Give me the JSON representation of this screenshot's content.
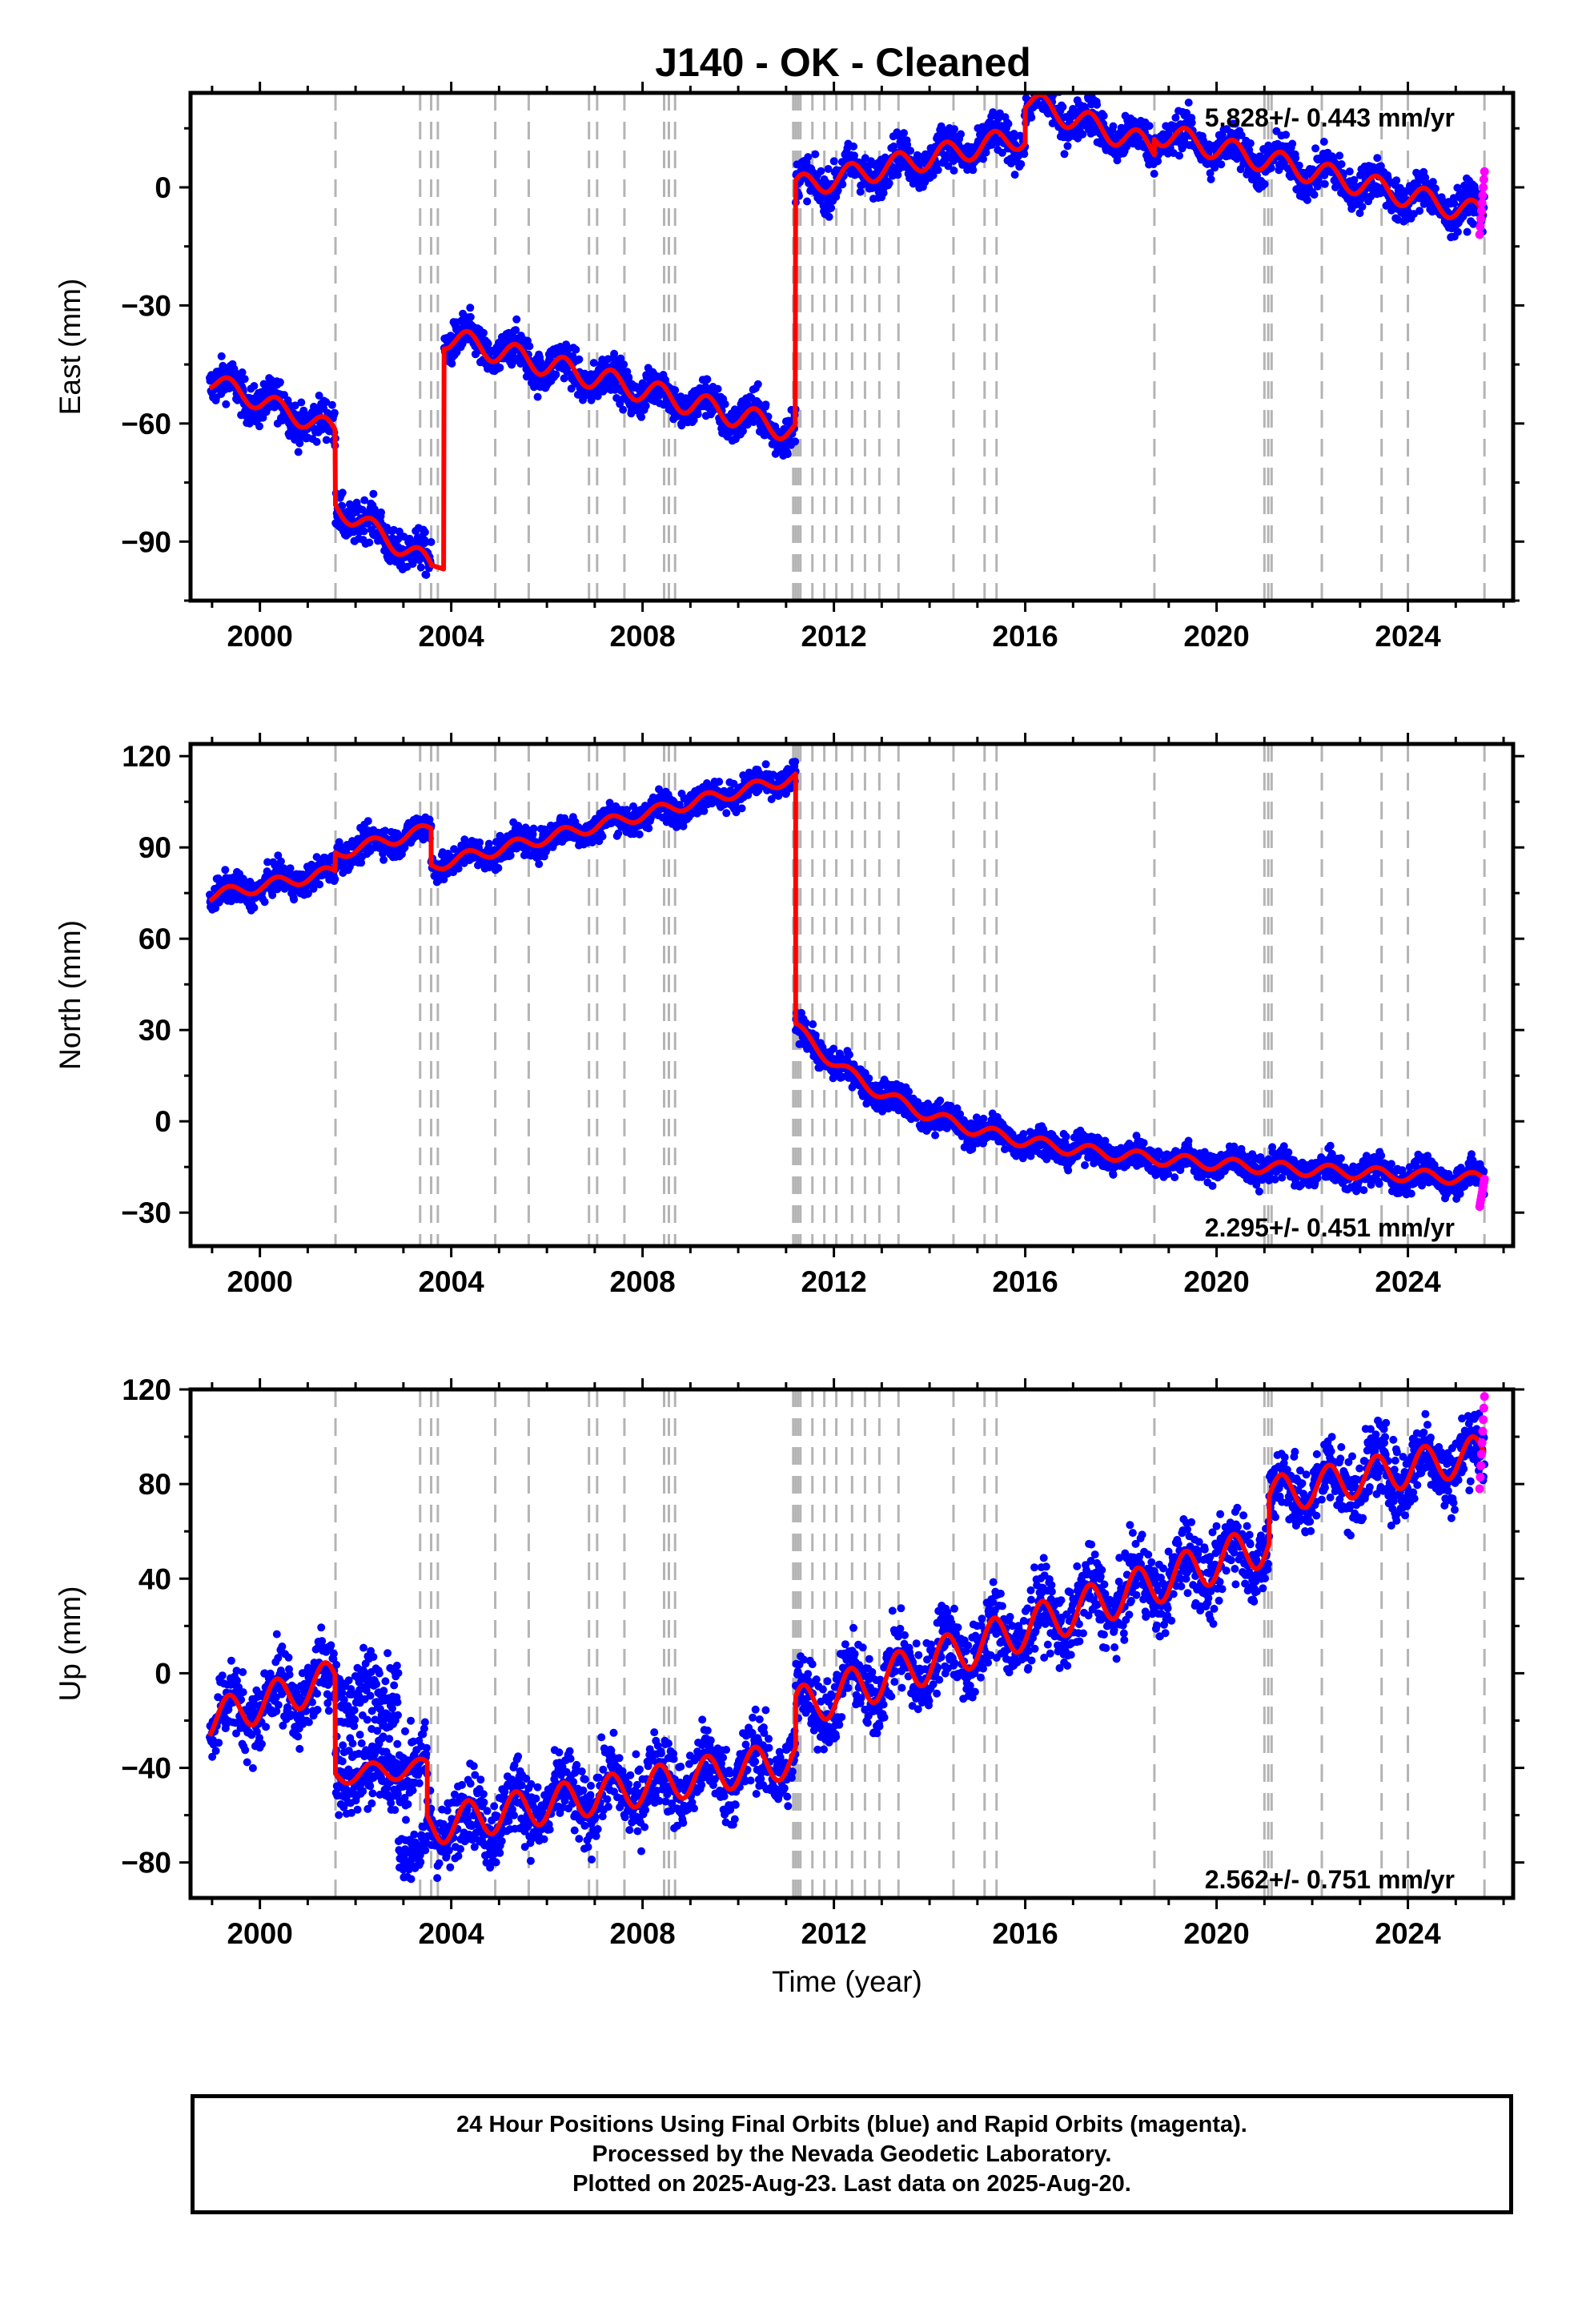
{
  "chart_data": {
    "title": "J140  - OK - Cleaned",
    "type": "scatter",
    "xlabel": "Time (year)",
    "xlim": [
      1998.55,
      2026.2
    ],
    "xticks": [
      2000,
      2004,
      2008,
      2012,
      2016,
      2020,
      2024
    ],
    "grid": false,
    "series_colors": {
      "final_orbits": "#0000ff",
      "rapid_orbits": "#ff00ff",
      "model": "#ff0000",
      "events": "#b4b4b4"
    },
    "event_lines": [
      2001.58,
      2003.35,
      2003.58,
      2003.72,
      2004.92,
      2005.62,
      2006.88,
      2007.05,
      2007.62,
      2008.45,
      2008.55,
      2008.68,
      2011.15,
      2011.2,
      2011.25,
      2011.3,
      2011.55,
      2011.8,
      2012.05,
      2012.38,
      2012.65,
      2012.95,
      2013.35,
      2014.5,
      2015.15,
      2015.4,
      2018.7,
      2021.0,
      2021.08,
      2021.15,
      2022.2,
      2023.45,
      2024.0,
      2025.6
    ],
    "panels": [
      {
        "name": "east",
        "ylabel": "East (mm)",
        "ylim": [
          -105,
          24
        ],
        "yticks": [
          0,
          -30,
          -60,
          -90
        ],
        "rate_text": "5.828+/- 0.443 mm/yr",
        "rate_position": "top-right",
        "model": [
          {
            "start": 1998.95,
            "end": 2001.58,
            "y0": -49,
            "y1": -62,
            "amp": 2.5
          },
          {
            "start": 2001.58,
            "end": 2003.58,
            "y0": -81,
            "y1": -96,
            "amp": 2.5
          },
          {
            "start": 2003.58,
            "end": 2003.85,
            "y0": -96,
            "y1": -97,
            "amp": 0
          },
          {
            "start": 2003.85,
            "end": 2011.2,
            "y0": -38,
            "y1": -62,
            "amp": 3
          },
          {
            "start": 2011.2,
            "end": 2016.0,
            "y0": 0,
            "y1": 13,
            "amp": 3
          },
          {
            "start": 2016.0,
            "end": 2018.7,
            "y0": 22,
            "y1": 10,
            "amp": 3
          },
          {
            "start": 2018.7,
            "end": 2025.6,
            "y0": 14,
            "y1": -7,
            "amp": 3
          }
        ],
        "noise": 2.6,
        "rapid": {
          "start": 2025.5,
          "end": 2025.6,
          "y0": -12,
          "y1": 4
        }
      },
      {
        "name": "north",
        "ylabel": "North (mm)",
        "ylim": [
          -41,
          124
        ],
        "yticks": [
          120,
          90,
          60,
          30,
          0,
          -30
        ],
        "rate_text": "2.295+/- 0.451 mm/yr",
        "rate_position": "bottom-right",
        "model": [
          {
            "start": 1998.95,
            "end": 2001.58,
            "y0": 74,
            "y1": 82,
            "amp": 2
          },
          {
            "start": 2001.58,
            "end": 2003.58,
            "y0": 88,
            "y1": 96,
            "amp": 2
          },
          {
            "start": 2003.58,
            "end": 2011.2,
            "y0": 84,
            "y1": 113,
            "amp": 2
          },
          {
            "start": 2011.2,
            "end": 2025.6,
            "y0": 31,
            "y1": -32,
            "amp": 2,
            "decay": {
              "A": 40,
              "tau": 2.5,
              "rate": 0.7
            }
          }
        ],
        "noise": 2.4,
        "rapid": {
          "start": 2025.5,
          "end": 2025.6,
          "y0": -28,
          "y1": -19
        }
      },
      {
        "name": "up",
        "ylabel": "Up (mm)",
        "ylim": [
          -95,
          120
        ],
        "yticks": [
          120,
          80,
          40,
          0,
          -40,
          -80
        ],
        "rate_text": "2.562+/- 0.751 mm/yr",
        "rate_position": "bottom-right",
        "model": [
          {
            "start": 1998.95,
            "end": 2001.58,
            "y0": -20,
            "y1": -2,
            "amp": 8
          },
          {
            "start": 2001.58,
            "end": 2003.5,
            "y0": -43,
            "y1": -40,
            "amp": 4
          },
          {
            "start": 2003.5,
            "end": 2011.2,
            "y0": -65,
            "y1": -36,
            "amp": 8
          },
          {
            "start": 2011.2,
            "end": 2021.1,
            "y0": -15,
            "y1": 55,
            "amp": 9
          },
          {
            "start": 2021.1,
            "end": 2025.6,
            "y0": 75,
            "y1": 93,
            "amp": 8
          }
        ],
        "noise": 8,
        "gap_points": {
          "start": 2001.58,
          "end": 2002.9,
          "y0": -12,
          "y1": -6
        },
        "post_gap_points": {
          "start": 2002.9,
          "end": 2003.5,
          "y0": -78,
          "y1": -72
        },
        "rapid": {
          "start": 2025.5,
          "end": 2025.6,
          "y0": 78,
          "y1": 117
        }
      }
    ]
  },
  "footer": {
    "line1": "24 Hour Positions Using Final Orbits (blue) and Rapid Orbits (magenta).",
    "line2": "Processed by the Nevada Geodetic Laboratory.",
    "line3": "Plotted on 2025-Aug-23. Last data on 2025-Aug-20."
  }
}
